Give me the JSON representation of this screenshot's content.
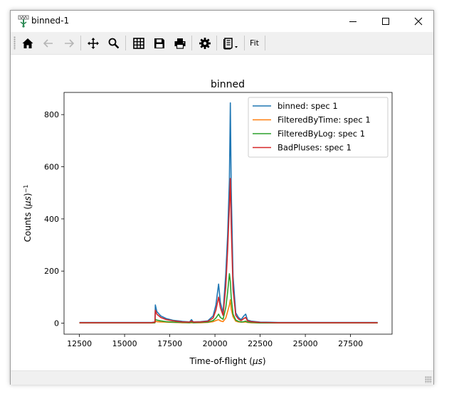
{
  "window": {
    "title": "binned-1"
  },
  "toolbar": {
    "buttons": [
      {
        "name": "home-icon",
        "enabled": true
      },
      {
        "name": "back-arrow-icon",
        "enabled": false
      },
      {
        "name": "forward-arrow-icon",
        "enabled": false
      },
      {
        "name": "pan-icon",
        "enabled": true
      },
      {
        "name": "zoom-icon",
        "enabled": true
      },
      {
        "name": "grid-icon",
        "enabled": true
      },
      {
        "name": "save-icon",
        "enabled": true
      },
      {
        "name": "print-icon",
        "enabled": true
      },
      {
        "name": "gear-icon",
        "enabled": true
      },
      {
        "name": "report-dropdown-icon",
        "enabled": true
      }
    ],
    "fit_label": "Fit"
  },
  "chart_data": {
    "type": "line",
    "title": "binned",
    "xlabel": "Time-of-flight ($\\mu s$)",
    "ylabel": "Counts ($\\mu s$)$^{-1}$",
    "xlim": [
      11650,
      29800
    ],
    "ylim": [
      -42,
      885
    ],
    "xticks": [
      12500,
      15000,
      17500,
      20000,
      22500,
      25000,
      27500
    ],
    "yticks": [
      0,
      200,
      400,
      600,
      800
    ],
    "grid": false,
    "legend_position": "top-right",
    "series": [
      {
        "name": "binned: spec 1",
        "color": "#1f77b4",
        "x": [
          12500,
          13500,
          14500,
          15500,
          16500,
          16680,
          16700,
          16780,
          17000,
          17300,
          17700,
          18200,
          18600,
          18700,
          18800,
          19200,
          19600,
          19900,
          20050,
          20200,
          20300,
          20450,
          20600,
          20700,
          20800,
          20850,
          20900,
          21000,
          21150,
          21300,
          21450,
          21600,
          21700,
          21800,
          22000,
          22500,
          23500,
          25000,
          27000,
          29000
        ],
        "y": [
          3,
          3,
          3,
          3,
          3,
          5,
          70,
          45,
          28,
          18,
          11,
          7,
          5,
          14,
          5,
          6,
          9,
          28,
          70,
          150,
          80,
          40,
          190,
          340,
          550,
          845,
          520,
          180,
          40,
          22,
          14,
          28,
          35,
          12,
          8,
          4,
          3,
          3,
          3,
          3
        ]
      },
      {
        "name": "FilteredByTime: spec 1",
        "color": "#ff7f0e",
        "x": [
          12500,
          13500,
          14500,
          15500,
          16500,
          16680,
          16700,
          16780,
          17000,
          17300,
          17700,
          18200,
          18600,
          18700,
          18800,
          19200,
          19600,
          19900,
          20050,
          20200,
          20300,
          20450,
          20600,
          20700,
          20800,
          20850,
          20900,
          21000,
          21150,
          21300,
          21450,
          21600,
          21700,
          21800,
          22000,
          22500,
          23500,
          25000,
          27000,
          29000
        ],
        "y": [
          1,
          1,
          1,
          1,
          1,
          2,
          8,
          6,
          5,
          4,
          3,
          2,
          2,
          2,
          2,
          2,
          3,
          6,
          10,
          14,
          9,
          6,
          20,
          45,
          70,
          90,
          55,
          25,
          8,
          5,
          4,
          4,
          5,
          3,
          2,
          1,
          1,
          1,
          1,
          1
        ]
      },
      {
        "name": "FilteredByLog: spec 1",
        "color": "#2ca02c",
        "x": [
          12500,
          13500,
          14500,
          15500,
          16500,
          16680,
          16700,
          16780,
          17000,
          17300,
          17700,
          18200,
          18600,
          18700,
          18800,
          19200,
          19600,
          19900,
          20050,
          20200,
          20300,
          20450,
          20600,
          20700,
          20800,
          20850,
          20900,
          21000,
          21150,
          21300,
          21450,
          21600,
          21700,
          21800,
          22000,
          22500,
          23500,
          25000,
          27000,
          29000
        ],
        "y": [
          1,
          1,
          1,
          1,
          1,
          2,
          15,
          12,
          9,
          6,
          4,
          3,
          2,
          4,
          2,
          3,
          4,
          10,
          20,
          35,
          22,
          15,
          60,
          120,
          190,
          160,
          100,
          35,
          12,
          7,
          5,
          6,
          8,
          4,
          3,
          1,
          1,
          1,
          1,
          1
        ]
      },
      {
        "name": "BadPluses: spec 1",
        "color": "#d62728",
        "x": [
          12500,
          13500,
          14500,
          15500,
          16500,
          16680,
          16700,
          16780,
          17000,
          17300,
          17700,
          18200,
          18600,
          18700,
          18800,
          19200,
          19600,
          19900,
          20050,
          20200,
          20300,
          20450,
          20600,
          20700,
          20800,
          20850,
          20900,
          21000,
          21150,
          21300,
          21450,
          21600,
          21700,
          21800,
          22000,
          22500,
          23500,
          25000,
          27000,
          29000
        ],
        "y": [
          2,
          2,
          2,
          2,
          2,
          4,
          50,
          35,
          22,
          14,
          9,
          5,
          4,
          9,
          4,
          5,
          7,
          20,
          50,
          100,
          60,
          30,
          140,
          280,
          450,
          555,
          380,
          130,
          30,
          16,
          10,
          18,
          22,
          9,
          6,
          3,
          2,
          2,
          2,
          2
        ]
      }
    ]
  }
}
